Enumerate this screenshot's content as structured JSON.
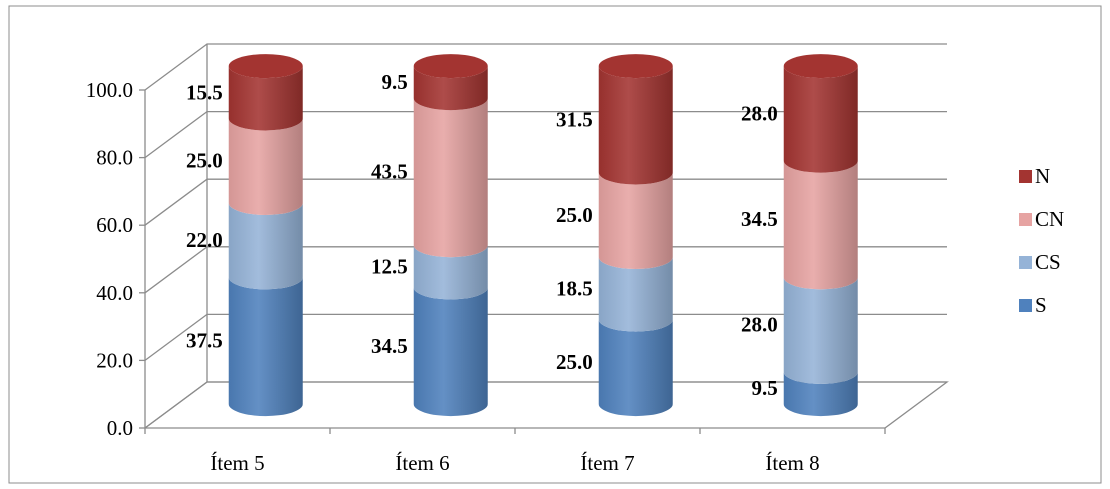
{
  "chart_data": {
    "type": "bar",
    "stacked": true,
    "style": "3d-cylinder",
    "categories": [
      "Ítem 5",
      "Ítem 6",
      "Ítem 7",
      "Ítem 8"
    ],
    "series": [
      {
        "name": "S",
        "values": [
          37.5,
          34.5,
          25.0,
          9.5
        ],
        "labels": [
          "37.5",
          "34.5",
          "25.0",
          "9.5"
        ],
        "color": "#4f81bd"
      },
      {
        "name": "CS",
        "values": [
          22.0,
          12.5,
          18.5,
          28.0
        ],
        "labels": [
          "22.0",
          "12.5",
          "18.5",
          "28.0"
        ],
        "color": "#95b3d7"
      },
      {
        "name": "CN",
        "values": [
          25.0,
          43.5,
          25.0,
          34.5
        ],
        "labels": [
          "25.0",
          "43.5",
          "25.0",
          "34.5"
        ],
        "color": "#e6a3a2"
      },
      {
        "name": "N",
        "values": [
          15.5,
          9.5,
          31.5,
          28.0
        ],
        "labels": [
          "15.5",
          "9.5",
          "31.5",
          "28.0"
        ],
        "color": "#a33431"
      }
    ],
    "yticks": [
      "0.0",
      "20.0",
      "40.0",
      "60.0",
      "80.0",
      "100.0"
    ],
    "ylim": [
      0,
      100
    ],
    "grid": true,
    "legend": "right"
  }
}
